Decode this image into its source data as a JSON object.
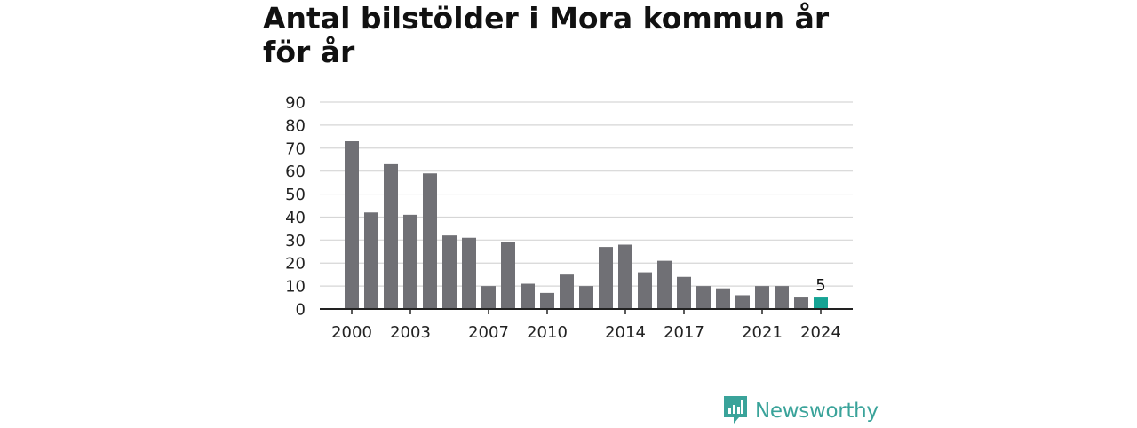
{
  "chart_data": {
    "type": "bar",
    "title": "Antal bilstölder i Mora kommun år för år",
    "categories": [
      "2000",
      "2001",
      "2002",
      "2003",
      "2004",
      "2005",
      "2006",
      "2007",
      "2008",
      "2009",
      "2010",
      "2011",
      "2012",
      "2013",
      "2014",
      "2015",
      "2016",
      "2017",
      "2018",
      "2019",
      "2020",
      "2021",
      "2022",
      "2023",
      "2024"
    ],
    "values": [
      73,
      42,
      63,
      41,
      59,
      32,
      31,
      10,
      29,
      11,
      7,
      15,
      10,
      27,
      28,
      16,
      21,
      14,
      10,
      9,
      6,
      10,
      10,
      5,
      5
    ],
    "x_tick_labels": [
      "2000",
      "2003",
      "2007",
      "2010",
      "2014",
      "2017",
      "2021",
      "2024"
    ],
    "y_ticks": [
      "0",
      "10",
      "20",
      "30",
      "40",
      "50",
      "60",
      "70",
      "80",
      "90"
    ],
    "ylim": [
      0,
      90
    ],
    "grid": true,
    "highlight": {
      "category": "2024",
      "label": "5"
    },
    "colors": {
      "bar": "#707075",
      "highlight": "#16a394",
      "grid": "#d6d6d6",
      "axis": "#222222"
    }
  },
  "brand": {
    "name": "Newsworthy",
    "icon": "newsworthy-logo-icon",
    "color": "#3aa39a"
  }
}
